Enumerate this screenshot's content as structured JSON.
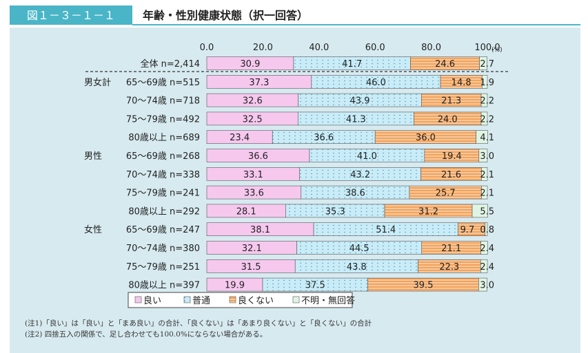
{
  "figure_label": "図１－３－１－１",
  "title": "年齢・性別健康状態（択一回答）",
  "chart_data": {
    "type": "bar",
    "stacked": true,
    "orientation": "horizontal",
    "xlim": [
      0,
      100
    ],
    "x_ticks": [
      "0.0",
      "20.0",
      "40.0",
      "60.0",
      "80.0",
      "100.0"
    ],
    "x_unit": "(%)",
    "groups": [
      {
        "label": "",
        "rows": [
          {
            "label": "全体 n=2,414",
            "values": [
              "30.9",
              "41.7",
              "24.6",
              "2.7"
            ]
          }
        ]
      },
      {
        "label": "男女計",
        "rows": [
          {
            "label": "65～69歳 n=515",
            "values": [
              "37.3",
              "46.0",
              "14.8",
              "1.9"
            ]
          },
          {
            "label": "70～74歳 n=718",
            "values": [
              "32.6",
              "43.9",
              "21.3",
              "2.2"
            ]
          },
          {
            "label": "75～79歳 n=492",
            "values": [
              "32.5",
              "41.3",
              "24.0",
              "2.2"
            ]
          },
          {
            "label": "80歳以上 n=689",
            "values": [
              "23.4",
              "36.6",
              "36.0",
              "4.1"
            ]
          }
        ]
      },
      {
        "label": "男性",
        "rows": [
          {
            "label": "65～69歳 n=268",
            "values": [
              "36.6",
              "41.0",
              "19.4",
              "3.0"
            ]
          },
          {
            "label": "70～74歳 n=338",
            "values": [
              "33.1",
              "43.2",
              "21.6",
              "2.1"
            ]
          },
          {
            "label": "75～79歳 n=241",
            "values": [
              "33.6",
              "38.6",
              "25.7",
              "2.1"
            ]
          },
          {
            "label": "80歳以上 n=292",
            "values": [
              "28.1",
              "35.3",
              "31.2",
              "5.5"
            ]
          }
        ]
      },
      {
        "label": "女性",
        "rows": [
          {
            "label": "65～69歳 n=247",
            "values": [
              "38.1",
              "51.4",
              "9.7",
              "0.8"
            ]
          },
          {
            "label": "70～74歳 n=380",
            "values": [
              "32.1",
              "44.5",
              "21.1",
              "2.4"
            ]
          },
          {
            "label": "75～79歳 n=251",
            "values": [
              "31.5",
              "43.8",
              "22.3",
              "2.4"
            ]
          },
          {
            "label": "80歳以上 n=397",
            "values": [
              "19.9",
              "37.5",
              "39.5",
              "3.0"
            ]
          }
        ]
      }
    ],
    "series": [
      {
        "name": "良い",
        "color": "#f6c8ee",
        "pattern": "none"
      },
      {
        "name": "普通",
        "color": "#c9ecf7",
        "pattern": "dots"
      },
      {
        "name": "良くない",
        "color": "#f2a35c",
        "pattern": "hlines"
      },
      {
        "name": "不明・無回答",
        "color": "#dff5e4",
        "pattern": "none"
      }
    ],
    "legend_position": "bottom",
    "grid": false
  },
  "notes": [
    "(注1)「良い」は「良い」と「まあ良い」の合計、「良くない」は「あまり良くない」と「良くない」の合計",
    "(注2) 四捨五入の関係で、足し合わせても100.0%にならない場合がある。"
  ],
  "colors": {
    "panel": "#d7eaf0",
    "label_box": "#49b5c7",
    "title_rule": "#49b5c7"
  }
}
